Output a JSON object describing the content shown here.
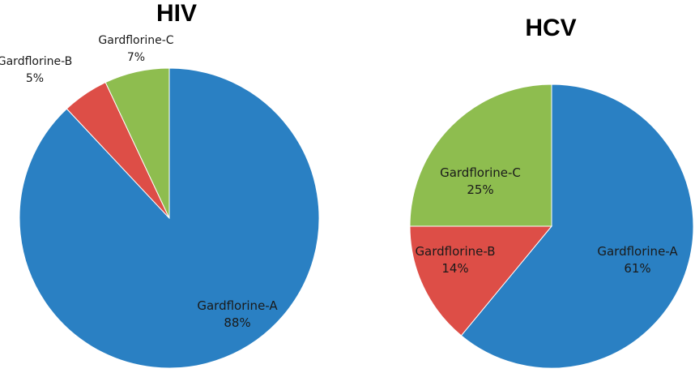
{
  "chart_data": [
    {
      "type": "pie",
      "title": "HIV",
      "start": "12 o'clock",
      "direction": "clockwise",
      "categories": [
        "Gardflorine-A",
        "Gardflorine-B",
        "Gardflorine-C"
      ],
      "values": [
        88,
        5,
        7
      ],
      "labels": [
        "88%",
        "5%",
        "7%"
      ],
      "colors": [
        "#2a80c3",
        "#dd4e47",
        "#8ebd4f"
      ]
    },
    {
      "type": "pie",
      "title": "HCV",
      "start": "12 o'clock",
      "direction": "clockwise",
      "categories": [
        "Gardflorine-A",
        "Gardflorine-B",
        "Gardflorine-C"
      ],
      "values": [
        61,
        14,
        25
      ],
      "labels": [
        "61%",
        "14%",
        "25%"
      ],
      "colors": [
        "#2a80c3",
        "#dd4e47",
        "#8ebd4f"
      ]
    }
  ]
}
